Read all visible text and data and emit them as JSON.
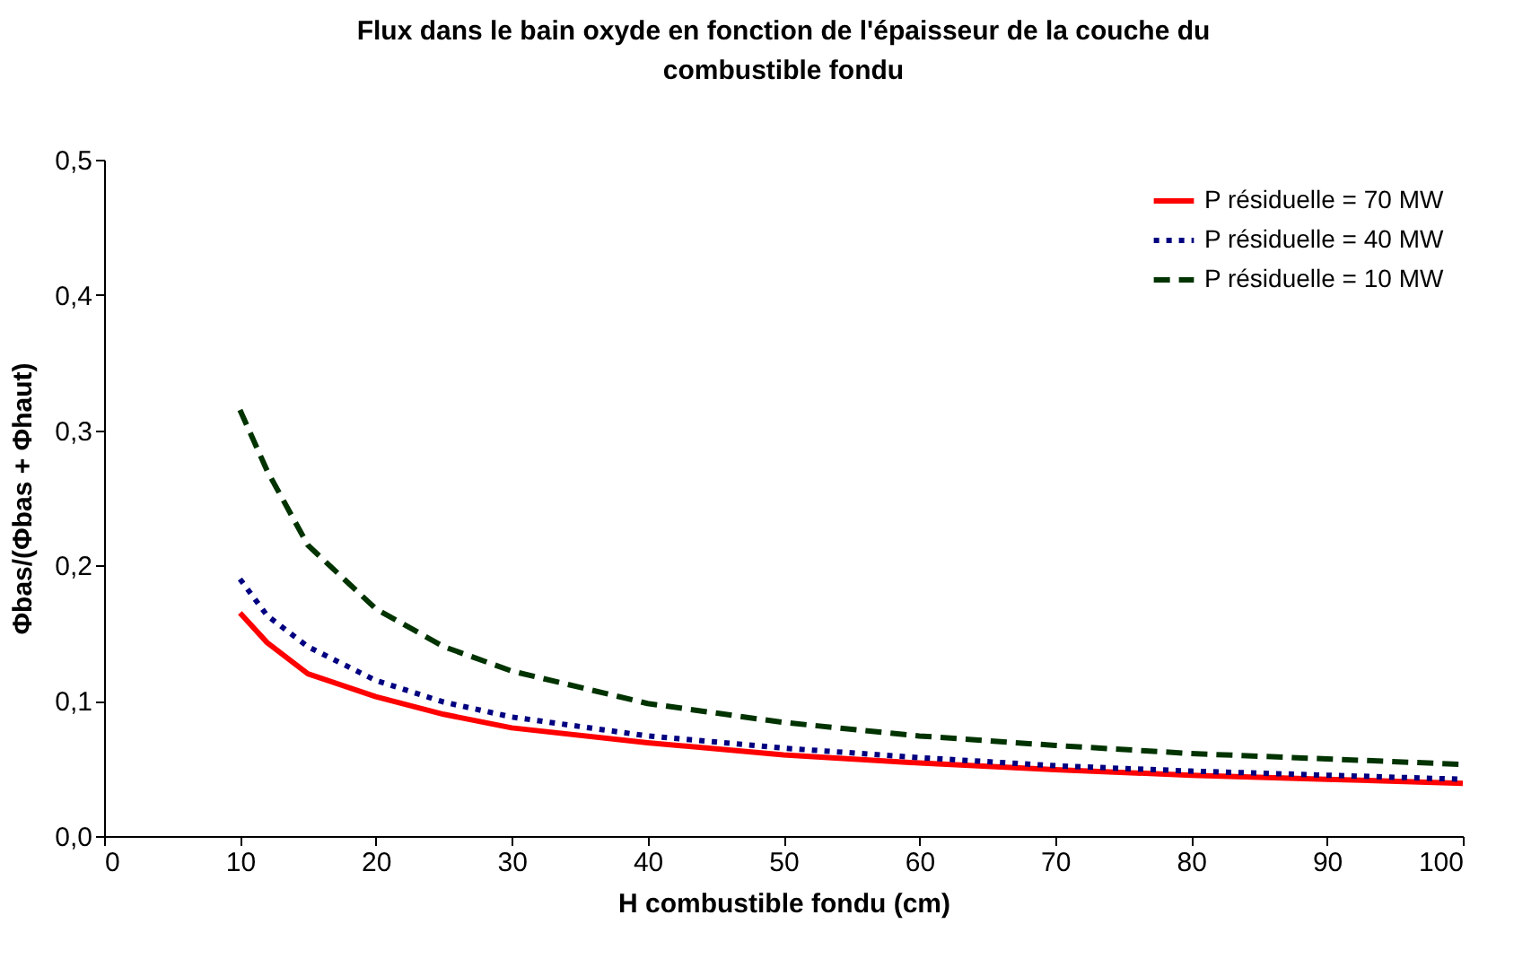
{
  "chart_data": {
    "type": "line",
    "title": "Flux dans le bain oxyde en fonction de l'épaisseur de la couche du combustible fondu",
    "xlabel": "H combustible fondu (cm)",
    "ylabel": "Φbas/(Φbas + Φhaut)",
    "x": [
      10,
      12,
      15,
      20,
      25,
      30,
      40,
      50,
      60,
      70,
      80,
      90,
      100
    ],
    "series": [
      {
        "name": "P résiduelle = 70 MW",
        "color": "#ff0000",
        "line_style": "solid",
        "values": [
          0.165,
          0.143,
          0.12,
          0.103,
          0.09,
          0.08,
          0.069,
          0.06,
          0.054,
          0.049,
          0.045,
          0.042,
          0.039
        ]
      },
      {
        "name": "P résiduelle = 40 MW",
        "color": "#000080",
        "line_style": "dotted",
        "values": [
          0.19,
          0.163,
          0.14,
          0.115,
          0.099,
          0.088,
          0.074,
          0.065,
          0.058,
          0.052,
          0.048,
          0.045,
          0.042
        ]
      },
      {
        "name": "P résiduelle = 10 MW",
        "color": "#003300",
        "line_style": "dashed",
        "values": [
          0.315,
          0.27,
          0.215,
          0.168,
          0.14,
          0.122,
          0.098,
          0.084,
          0.074,
          0.067,
          0.061,
          0.057,
          0.053
        ]
      }
    ],
    "xlim": [
      0,
      100
    ],
    "xticks": [
      0,
      10,
      20,
      30,
      40,
      50,
      60,
      70,
      80,
      90,
      100
    ],
    "ylim": [
      0,
      0.5
    ],
    "yticks": [
      {
        "value": 0,
        "label": "0,0"
      },
      {
        "value": 0.1,
        "label": "0,1"
      },
      {
        "value": 0.2,
        "label": "0,2"
      },
      {
        "value": 0.3,
        "label": "0,3"
      },
      {
        "value": 0.4,
        "label": "0,4"
      },
      {
        "value": 0.5,
        "label": "0,5"
      }
    ],
    "grid": false,
    "legend": "top right",
    "marker": "none"
  }
}
